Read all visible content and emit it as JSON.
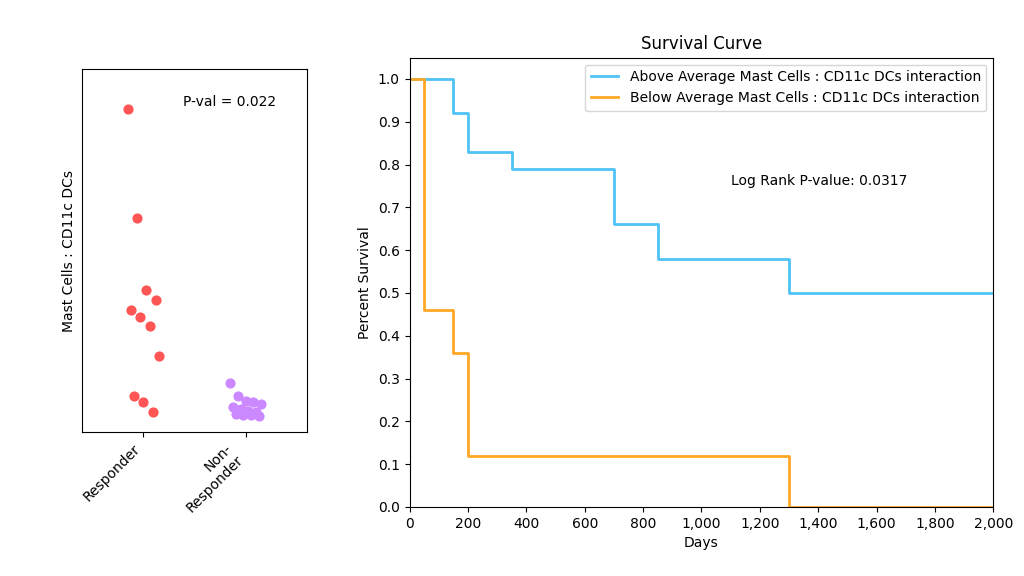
{
  "chart_data": [
    {
      "type": "strip",
      "categories": [
        "Responder",
        "Non-\nResponder"
      ],
      "values": [
        [
          0.93,
          0.6,
          0.38,
          0.35,
          0.32,
          0.3,
          0.27,
          0.18,
          0.06,
          0.04,
          0.01
        ],
        [
          0.1,
          0.06,
          0.045,
          0.04,
          0.035,
          0.025,
          0.02,
          0.015,
          0.01,
          0.005,
          0.002,
          0.001,
          0.0
        ]
      ],
      "colors": [
        "#FF5555",
        "#CC88FF"
      ],
      "y_label": "Mast Cells : CD11c DCs",
      "annotations": [
        "P-val = 0.022"
      ],
      "ylim": [
        -0.05,
        1.05
      ],
      "tick_labels": "x"
    },
    {
      "type": "step",
      "title": "Survival Curve",
      "x_label": "Days",
      "y_label": "Percent Survival",
      "annotations": [
        "Log Rank P-value: 0.0317"
      ],
      "series": [
        {
          "name": "Above Average Mast Cells : CD11c DCs interaction",
          "color": "#4FC3F7",
          "x": [
            0,
            100,
            150,
            200,
            300,
            350,
            650,
            700,
            850,
            1250,
            1300,
            2000
          ],
          "values": [
            1.0,
            1.0,
            0.92,
            0.83,
            0.83,
            0.79,
            0.79,
            0.66,
            0.58,
            0.58,
            0.5,
            0.5
          ]
        },
        {
          "name": "Below Average Mast Cells : CD11c DCs interaction",
          "color": "#FFA726",
          "x": [
            0,
            50,
            150,
            200,
            300,
            1300,
            2000
          ],
          "values": [
            1.0,
            0.46,
            0.36,
            0.12,
            0.12,
            0.0,
            0.0
          ]
        }
      ],
      "xlim": [
        0,
        2000
      ],
      "ylim": [
        0.0,
        1.05
      ],
      "xticks": [
        0,
        200,
        400,
        600,
        800,
        {
          "value": 1000,
          "label": "1,000"
        },
        {
          "value": 1200,
          "label": "1,200"
        },
        {
          "value": 1400,
          "label": "1,400"
        },
        {
          "value": 1600,
          "label": "1,600"
        },
        {
          "value": 1800,
          "label": "1,800"
        },
        {
          "value": 2000,
          "label": "2,000"
        }
      ],
      "yticks": [
        {
          "value": 0.0,
          "label": "0.0"
        },
        0.1,
        0.2,
        0.3,
        0.4,
        0.5,
        0.6,
        0.7,
        0.8,
        0.9,
        {
          "value": 1.0,
          "label": "1.0"
        }
      ],
      "legend": "upper right"
    }
  ]
}
